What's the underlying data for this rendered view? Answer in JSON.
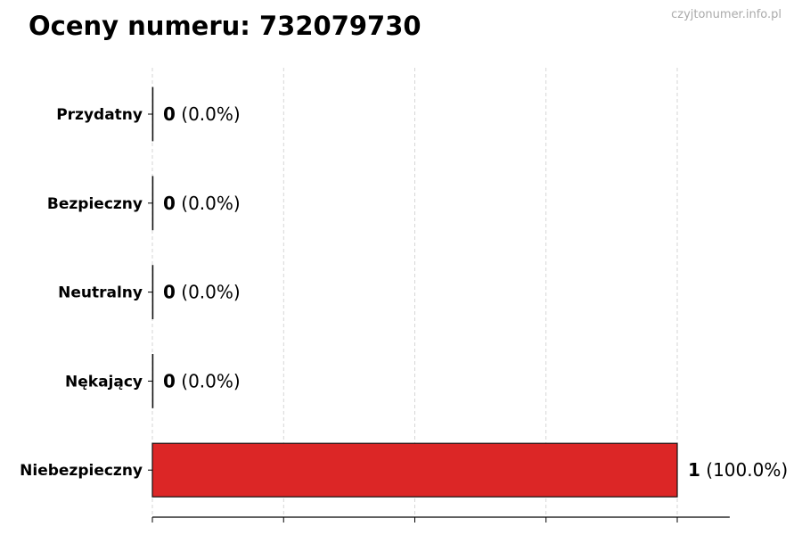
{
  "header": {
    "title": "Oceny numeru: 732079730",
    "watermark": "czyjtonumer.info.pl"
  },
  "chart_data": {
    "type": "bar",
    "orientation": "horizontal",
    "title": "Oceny numeru: 732079730",
    "categories": [
      "Przydatny",
      "Bezpieczny",
      "Neutralny",
      "Nękający",
      "Niebezpieczny"
    ],
    "values": [
      0,
      0,
      0,
      0,
      1
    ],
    "labels": [
      {
        "count": "0",
        "pct": "(0.0%)"
      },
      {
        "count": "0",
        "pct": "(0.0%)"
      },
      {
        "count": "0",
        "pct": "(0.0%)"
      },
      {
        "count": "0",
        "pct": "(0.0%)"
      },
      {
        "count": "1",
        "pct": "(100.0%)"
      }
    ],
    "colors": [
      "#888888",
      "#888888",
      "#888888",
      "#888888",
      "#dc2626"
    ],
    "xlim": [
      0,
      1.1
    ],
    "xticks": [
      0,
      0.25,
      0.5,
      0.75,
      1
    ],
    "xtick_labels_shown": false,
    "grid": "vertical dashed",
    "xlabel": "",
    "ylabel": ""
  }
}
